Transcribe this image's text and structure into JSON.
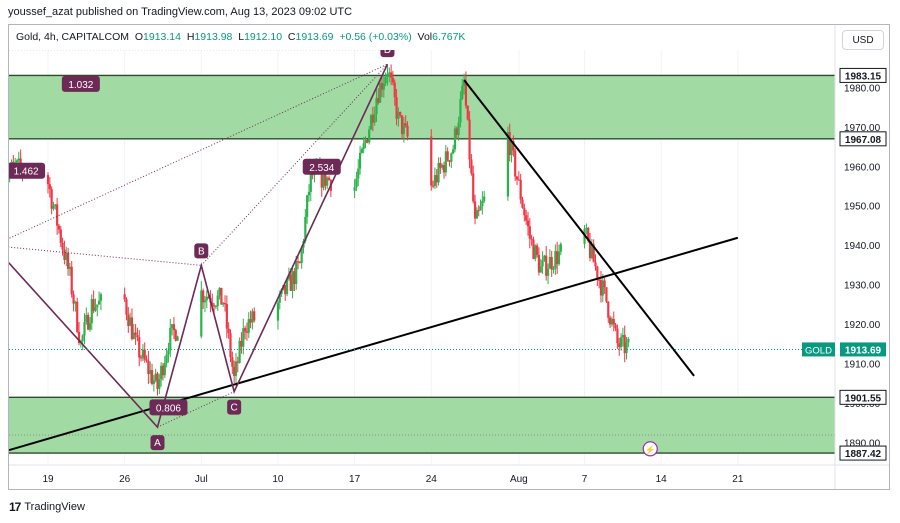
{
  "caption": "youssef_azat published on TradingView.com, Aug 13, 2023 09:02 UTC",
  "legend": {
    "symbol": "Gold, 4h, CAPITALCOM",
    "o_label": "O",
    "o": "1913.14",
    "h_label": "H",
    "h": "1913.98",
    "l_label": "L",
    "l": "1912.10",
    "c_label": "C",
    "c": "1913.69",
    "change": "+0.56 (+0.03%)",
    "vol_label": "Vol",
    "vol": "6.767K"
  },
  "currency_button": "USD",
  "brand": "TradingView",
  "colors": {
    "up": "#089981",
    "up_candle": "#2bb34b",
    "down": "#f23645",
    "zone": "#92d394",
    "pattern": "#6d2a56",
    "trendline": "#000000",
    "price_label": "#089981"
  },
  "chart_data": {
    "type": "candlestick",
    "symbol": "Gold",
    "timeframe": "4h",
    "ylim": [
      1885,
      1994
    ],
    "y_ticks": [
      1890,
      1900,
      1910,
      1920,
      1930,
      1940,
      1950,
      1960,
      1970,
      1980
    ],
    "y_tick_labels": [
      "1890.00",
      "1900.00",
      "1910.00",
      "1920.00",
      "1930.00",
      "1940.00",
      "1950.00",
      "1960.00",
      "1970.00",
      "1980.00"
    ],
    "x_ticks": [
      {
        "label": "19",
        "date": "2023-06-19"
      },
      {
        "label": "26",
        "date": "2023-06-26"
      },
      {
        "label": "Jul",
        "date": "2023-07-03"
      },
      {
        "label": "10",
        "date": "2023-07-10"
      },
      {
        "label": "17",
        "date": "2023-07-17"
      },
      {
        "label": "24",
        "date": "2023-07-24"
      },
      {
        "label": "Aug",
        "date": "2023-08-01"
      },
      {
        "label": "7",
        "date": "2023-08-07"
      },
      {
        "label": "14",
        "date": "2023-08-14"
      },
      {
        "label": "21",
        "date": "2023-08-21"
      }
    ],
    "price_path": [
      {
        "date": "2023-06-15",
        "value": 1958
      },
      {
        "date": "2023-06-16",
        "value": 1960
      },
      {
        "date": "2023-06-19",
        "value": 1956
      },
      {
        "date": "2023-06-21",
        "value": 1932
      },
      {
        "date": "2023-06-22",
        "value": 1915
      },
      {
        "date": "2023-06-23",
        "value": 1925
      },
      {
        "date": "2023-06-26",
        "value": 1926
      },
      {
        "date": "2023-06-27",
        "value": 1915
      },
      {
        "date": "2023-06-29",
        "value": 1904
      },
      {
        "date": "2023-06-30",
        "value": 1916
      },
      {
        "date": "2023-07-03",
        "value": 1928
      },
      {
        "date": "2023-07-05",
        "value": 1926
      },
      {
        "date": "2023-07-06",
        "value": 1906
      },
      {
        "date": "2023-07-07",
        "value": 1920
      },
      {
        "date": "2023-07-10",
        "value": 1925
      },
      {
        "date": "2023-07-12",
        "value": 1935
      },
      {
        "date": "2023-07-13",
        "value": 1958
      },
      {
        "date": "2023-07-17",
        "value": 1955
      },
      {
        "date": "2023-07-19",
        "value": 1978
      },
      {
        "date": "2023-07-20",
        "value": 1985
      },
      {
        "date": "2023-07-21",
        "value": 1972
      },
      {
        "date": "2023-07-24",
        "value": 1955
      },
      {
        "date": "2023-07-26",
        "value": 1965
      },
      {
        "date": "2023-07-27",
        "value": 1981
      },
      {
        "date": "2023-07-28",
        "value": 1945
      },
      {
        "date": "2023-07-31",
        "value": 1968
      },
      {
        "date": "2023-08-02",
        "value": 1942
      },
      {
        "date": "2023-08-03",
        "value": 1934
      },
      {
        "date": "2023-08-07",
        "value": 1943
      },
      {
        "date": "2023-08-09",
        "value": 1926
      },
      {
        "date": "2023-08-10",
        "value": 1915
      },
      {
        "date": "2023-08-11",
        "value": 1914
      }
    ],
    "zones": [
      {
        "name": "resistance-zone",
        "low": 1967.08,
        "high": 1983.15,
        "low_label": "1967.08",
        "high_label": "1983.15"
      },
      {
        "name": "support-zone",
        "low": 1887.42,
        "high": 1901.55,
        "low_label": "1887.42",
        "high_label": "1901.55"
      }
    ],
    "current_price": {
      "symbol": "GOLD",
      "value": 1913.69,
      "label": "1913.69"
    },
    "pattern_points": [
      {
        "label": "A",
        "date": "2023-06-29",
        "value": 1894
      },
      {
        "label": "B",
        "date": "2023-07-03",
        "value": 1935
      },
      {
        "label": "C",
        "date": "2023-07-06",
        "value": 1903
      },
      {
        "label": "D",
        "date": "2023-07-20",
        "value": 1986
      }
    ],
    "pattern_ratios": [
      {
        "label": "1.032",
        "date": "2023-06-22",
        "value": 1981
      },
      {
        "label": "1.462",
        "date": "2023-06-17",
        "value": 1959
      },
      {
        "label": "0.806",
        "date": "2023-06-30",
        "value": 1899
      },
      {
        "label": "2.534",
        "date": "2023-07-14",
        "value": 1960
      }
    ],
    "trendlines": [
      {
        "name": "rising-trendline",
        "start": {
          "date": "2023-06-14",
          "value": 1887
        },
        "end": {
          "date": "2023-08-21",
          "value": 1942
        }
      },
      {
        "name": "falling-trendline",
        "start": {
          "date": "2023-07-27",
          "value": 1982
        },
        "end": {
          "date": "2023-08-17",
          "value": 1907
        }
      }
    ]
  }
}
